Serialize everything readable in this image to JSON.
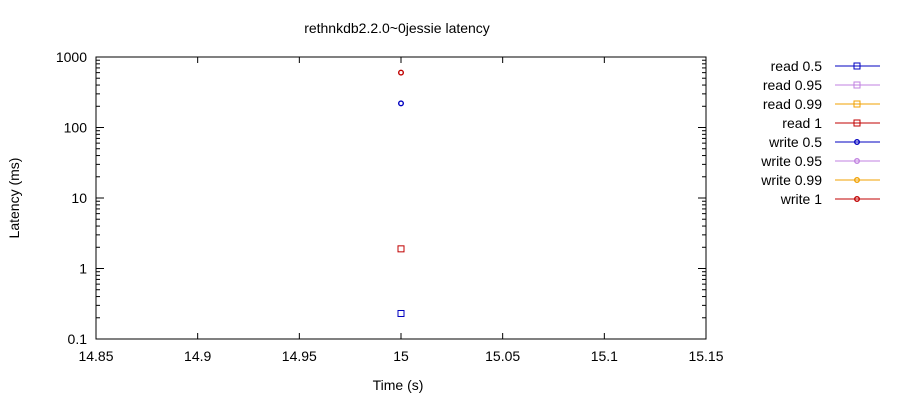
{
  "chart_data": {
    "type": "scatter",
    "title": "rethnkdb2.2.0~0jessie latency",
    "xlabel": "Time (s)",
    "ylabel": "Latency (ms)",
    "xlim": [
      14.85,
      15.15
    ],
    "ylim": [
      0.1,
      1000
    ],
    "yscale": "log",
    "x_ticks": [
      "14.85",
      "14.9",
      "14.95",
      "15",
      "15.05",
      "15.1",
      "15.15"
    ],
    "y_ticks": [
      "0.1",
      "1",
      "10",
      "100",
      "1000"
    ],
    "grid": false,
    "legend_position": "outside-right",
    "series": [
      {
        "name": "read 0.5",
        "color": "#0000c0",
        "marker": "square",
        "points": [
          {
            "x": 15,
            "y": 0.23
          }
        ]
      },
      {
        "name": "read 0.95",
        "color": "#c080e0",
        "marker": "square",
        "points": []
      },
      {
        "name": "read 0.99",
        "color": "#f0a000",
        "marker": "square",
        "points": []
      },
      {
        "name": "read 1",
        "color": "#c00000",
        "marker": "square",
        "points": [
          {
            "x": 15,
            "y": 1.9
          }
        ]
      },
      {
        "name": "write 0.5",
        "color": "#0000c0",
        "marker": "circle",
        "points": [
          {
            "x": 15,
            "y": 220
          }
        ]
      },
      {
        "name": "write 0.95",
        "color": "#c080e0",
        "marker": "circle",
        "points": []
      },
      {
        "name": "write 0.99",
        "color": "#f0a000",
        "marker": "circle",
        "points": []
      },
      {
        "name": "write 1",
        "color": "#c00000",
        "marker": "circle",
        "points": [
          {
            "x": 15,
            "y": 600
          }
        ]
      }
    ]
  }
}
